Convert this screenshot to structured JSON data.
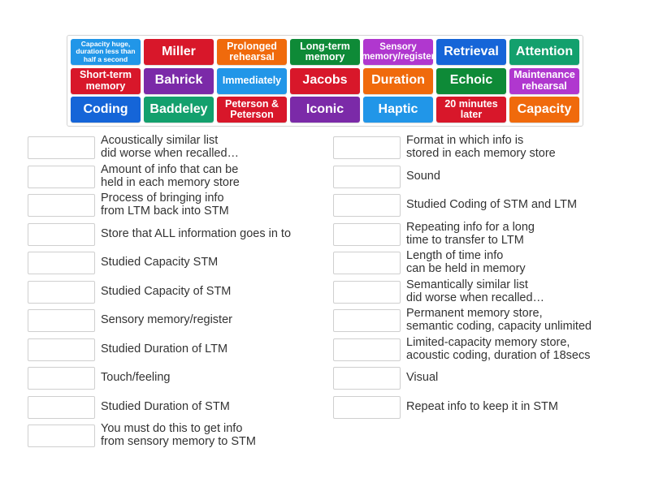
{
  "colors": {
    "blue": "#1565d8",
    "red": "#d8172a",
    "purple": "#7b2aa8",
    "orange": "#f06a0c",
    "green": "#0e8a37",
    "light_blue": "#2196e8",
    "violet": "#b037cf",
    "teal": "#13a06d"
  },
  "tiles": [
    {
      "text": "Capacity huge, duration less than half a second",
      "color": "#2196e8"
    },
    {
      "text": "Miller",
      "color": "#d8172a"
    },
    {
      "text": "Prolonged rehearsal",
      "color": "#f06a0c"
    },
    {
      "text": "Long-term memory",
      "color": "#0e8a37"
    },
    {
      "text": "Sensory memory/register",
      "color": "#b037cf"
    },
    {
      "text": "Retrieval",
      "color": "#1565d8"
    },
    {
      "text": "Attention",
      "color": "#13a06d"
    },
    {
      "text": "Short-term memory",
      "color": "#d8172a"
    },
    {
      "text": "Bahrick",
      "color": "#7b2aa8"
    },
    {
      "text": "Immediately",
      "color": "#2196e8"
    },
    {
      "text": "Jacobs",
      "color": "#d8172a"
    },
    {
      "text": "Duration",
      "color": "#f06a0c"
    },
    {
      "text": "Echoic",
      "color": "#0e8a37"
    },
    {
      "text": "Maintenance rehearsal",
      "color": "#b037cf"
    },
    {
      "text": "Coding",
      "color": "#1565d8"
    },
    {
      "text": "Baddeley",
      "color": "#13a06d"
    },
    {
      "text": "Peterson & Peterson",
      "color": "#d8172a"
    },
    {
      "text": "Iconic",
      "color": "#7b2aa8"
    },
    {
      "text": "Haptic",
      "color": "#2196e8"
    },
    {
      "text": "20 minutes later",
      "color": "#d8172a"
    },
    {
      "text": "Capacity",
      "color": "#f06a0c"
    }
  ],
  "left_items": [
    "Acoustically similar list\ndid worse when recalled…",
    "Amount of info that can be\nheld in each memory store",
    "Process of bringing info\nfrom LTM back into STM",
    "Store that ALL information goes in to",
    "Studied Capacity STM",
    "Studied Capacity of STM",
    "Sensory memory/register",
    "Studied Duration of LTM",
    "Touch/feeling",
    "Studied Duration of STM",
    "You must do this to get info\nfrom sensory memory to STM"
  ],
  "right_items": [
    "Format in which info is\nstored in each memory store",
    "Sound",
    "Studied Coding of STM and LTM",
    "Repeating info for a long\ntime to transfer to LTM",
    "Length of time info\ncan be held in memory",
    "Semantically similar list\ndid worse when recalled…",
    "Permanent memory store,\nsemantic coding, capacity unlimited",
    "Limited-capacity memory store,\nacoustic coding, duration of 18secs",
    "Visual",
    "Repeat info to keep it in STM"
  ]
}
